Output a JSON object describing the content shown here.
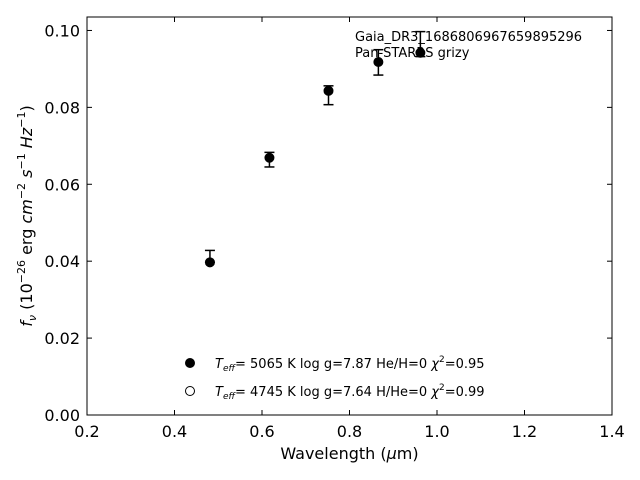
{
  "chart_data": {
    "type": "scatter",
    "title": "",
    "xlabel": {
      "pre": "Wavelength (",
      "sym": "μ",
      "post": "m)"
    },
    "ylabel": "f_ν (10^-26 erg cm^-2 s^-1 Hz^-1)",
    "xlim": [
      0.2,
      1.4
    ],
    "ylim": [
      0.0,
      0.1035
    ],
    "xticks": [
      0.2,
      0.4,
      0.6,
      0.8,
      1.0,
      1.2,
      1.4
    ],
    "xtick_labels": [
      "0.2",
      "0.4",
      "0.6",
      "0.8",
      "1.0",
      "1.2",
      "1.4"
    ],
    "yticks": [
      0.0,
      0.02,
      0.04,
      0.06,
      0.08,
      0.1
    ],
    "ytick_labels": [
      "0.00",
      "0.02",
      "0.04",
      "0.06",
      "0.08",
      "0.10"
    ],
    "grid": false,
    "annotation": [
      "Gaia_DR3_1686806967659895296",
      "Pan-STARRS grizy"
    ],
    "series": [
      {
        "marker": "filled-circle",
        "color": "#000000",
        "points": [
          {
            "x": 0.481,
            "y": 0.0397,
            "err_lo": 0.0397,
            "err_hi": 0.0428
          },
          {
            "x": 0.617,
            "y": 0.0669,
            "err_lo": 0.0645,
            "err_hi": 0.0683
          },
          {
            "x": 0.752,
            "y": 0.0843,
            "err_lo": 0.0807,
            "err_hi": 0.0856
          },
          {
            "x": 0.866,
            "y": 0.0918,
            "err_lo": 0.0884,
            "err_hi": 0.095
          },
          {
            "x": 0.962,
            "y": 0.0942,
            "err_lo": 0.0932,
            "err_hi": 0.0997
          }
        ]
      }
    ],
    "legend": {
      "placement": "lower-center",
      "entries": [
        {
          "marker": "filled",
          "teff": "5065 K",
          "logg": "log g=7.87",
          "comp": "He/H=0",
          "chi2": "=0.95"
        },
        {
          "marker": "open",
          "teff": "4745 K",
          "logg": "log g=7.64",
          "comp": "H/He=0",
          "chi2": "=0.99"
        }
      ]
    }
  }
}
